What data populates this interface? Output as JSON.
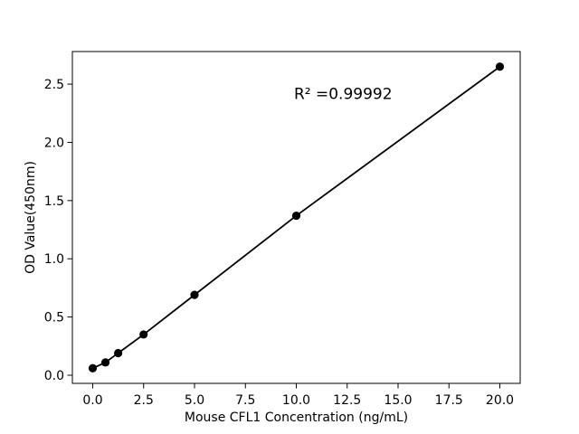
{
  "figure": {
    "background": "#ffffff"
  },
  "chart_data": {
    "type": "scatter",
    "series_name": "standard-curve",
    "x": [
      0,
      0.625,
      1.25,
      2.5,
      5,
      10,
      20
    ],
    "y": [
      0.06,
      0.11,
      0.19,
      0.35,
      0.69,
      1.37,
      2.65
    ],
    "title": "",
    "xlabel": "Mouse CFL1 Concentration (ng/mL)",
    "ylabel": "OD Value(450nm)",
    "annotation": "R² =0.99992",
    "r_squared": 0.99992,
    "annotation_position": {
      "x": 12.3,
      "y": 2.42
    },
    "xlim": [
      -1,
      21
    ],
    "ylim": [
      -0.07,
      2.78
    ],
    "x_tick_values": [
      0,
      2.5,
      5,
      7.5,
      10,
      12.5,
      15,
      17.5,
      20
    ],
    "x_tick_labels": [
      "0.0",
      "2.5",
      "5.0",
      "7.5",
      "10.0",
      "12.5",
      "15.0",
      "17.5",
      "20.0"
    ],
    "y_tick_values": [
      0,
      0.5,
      1,
      1.5,
      2,
      2.5
    ],
    "y_tick_labels": [
      "0.0",
      "0.5",
      "1.0",
      "1.5",
      "2.0",
      "2.5"
    ],
    "grid": false,
    "legend": null,
    "line_color": "#000000",
    "marker_color": "#000000",
    "marker": "circle",
    "frame_color": "#000000"
  }
}
